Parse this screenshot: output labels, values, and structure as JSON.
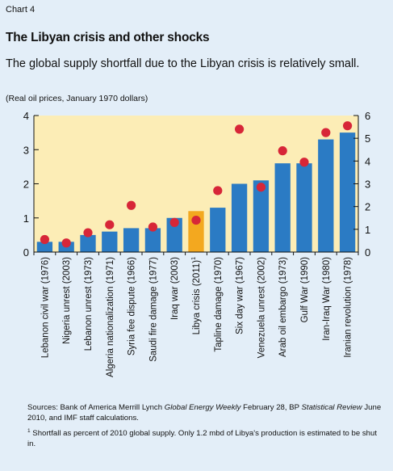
{
  "header": {
    "chart_label": "Chart 4",
    "title": "The Libyan crisis and other shocks",
    "subtitle": "The global supply shortfall due to the Libyan crisis is relatively small.",
    "units": "(Real oil prices, January 1970 dollars)"
  },
  "notes": {
    "sources_prefix": "Sources: Bank of America Merrill Lynch ",
    "sources_italic1": "Global Energy Weekly",
    "sources_mid": " February 28, BP ",
    "sources_italic2": "Statistical Review",
    "sources_suffix": " June 2010, and IMF staff calculations.",
    "footnote_marker": "1",
    "footnote_text": "Shortfall as percent of 2010 global supply. Only 1.2 mbd of Libya's production is estimated to be shut in."
  },
  "colors": {
    "plot_background": "#fcedb6",
    "bar": "#2b7bc4",
    "highlight_bar": "#f3a81f",
    "dot": "#d72638",
    "page_background": "#e3eef8"
  },
  "chart_data": {
    "type": "bar",
    "categories": [
      "Lebanon civil war (1976)",
      "Nigeria unrest (2003)",
      "Lebanon unrest (1973)",
      "Algeria nationalization (1971)",
      "Syria fee dispute (1966)",
      "Saudi fire damage (1977)",
      "Iraq war (2003)",
      "Libya crisis (2011)",
      "Tapline damage (1970)",
      "Six day war (1967)",
      "Venezuela unrest (2002)",
      "Arab oil embargo (1973)",
      "Gulf War (1990)",
      "Iran-Iraq War (1980)",
      "Iranian revolution (1978)"
    ],
    "category_superscript": {
      "index": 7,
      "text": "1"
    },
    "series": [
      {
        "axis": "left",
        "values": [
          0.3,
          0.3,
          0.5,
          0.6,
          0.7,
          0.7,
          1.0,
          1.2,
          1.3,
          2.0,
          2.1,
          2.6,
          2.6,
          3.3,
          3.5
        ]
      },
      {
        "axis": "right",
        "values": [
          0.55,
          0.4,
          0.85,
          1.2,
          2.05,
          1.1,
          1.3,
          1.4,
          2.7,
          5.4,
          2.85,
          4.45,
          3.95,
          5.25,
          5.55
        ]
      }
    ],
    "highlight_index": 7,
    "ylim_left": [
      0,
      4
    ],
    "ylim_right": [
      0,
      6
    ],
    "yticks_left": [
      0,
      1,
      2,
      3,
      4
    ],
    "yticks_right": [
      0,
      1,
      2,
      3,
      4,
      5,
      6
    ],
    "grid": false
  }
}
